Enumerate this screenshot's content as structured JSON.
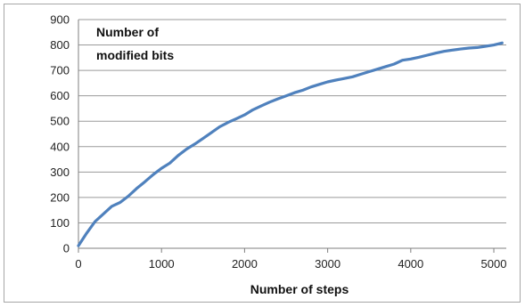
{
  "chart_data": {
    "type": "line",
    "title": "",
    "ylabel_inside": [
      "Number of",
      "modified bits"
    ],
    "xlabel": "Number of steps",
    "xlim": [
      0,
      5150
    ],
    "ylim": [
      0,
      900
    ],
    "x_ticks": [
      0,
      1000,
      2000,
      3000,
      4000,
      5000
    ],
    "y_ticks": [
      0,
      100,
      200,
      300,
      400,
      500,
      600,
      700,
      800,
      900
    ],
    "grid": "horizontal",
    "legend": "none",
    "line_color": "#4f81bd",
    "series": [
      {
        "x": [
          0,
          100,
          200,
          300,
          400,
          500,
          600,
          700,
          800,
          900,
          1000,
          1100,
          1200,
          1300,
          1400,
          1500,
          1600,
          1700,
          1800,
          1900,
          2000,
          2100,
          2200,
          2300,
          2400,
          2500,
          2600,
          2700,
          2800,
          2900,
          3000,
          3100,
          3200,
          3300,
          3400,
          3500,
          3600,
          3700,
          3800,
          3900,
          4000,
          4100,
          4200,
          4300,
          4400,
          4500,
          4600,
          4700,
          4800,
          4900,
          5000,
          5100
        ],
        "y": [
          10,
          60,
          105,
          135,
          165,
          180,
          205,
          235,
          262,
          290,
          315,
          335,
          365,
          390,
          410,
          432,
          455,
          478,
          495,
          510,
          525,
          545,
          560,
          575,
          588,
          600,
          612,
          622,
          635,
          645,
          655,
          662,
          668,
          675,
          685,
          695,
          705,
          715,
          725,
          740,
          745,
          752,
          760,
          768,
          775,
          780,
          784,
          788,
          790,
          795,
          800,
          808
        ]
      }
    ]
  }
}
